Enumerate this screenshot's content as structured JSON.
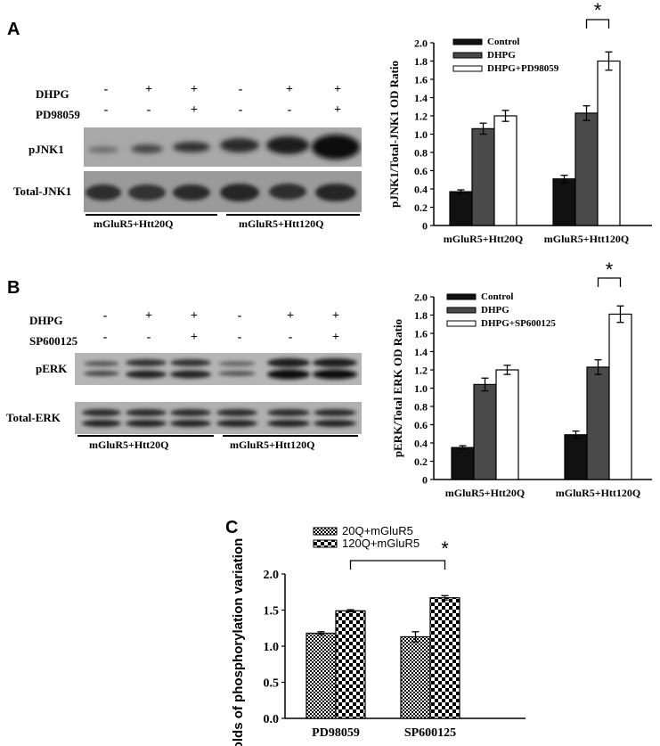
{
  "panels": {
    "a": {
      "letter": "A",
      "rows": [
        {
          "label": "DHPG",
          "signs": [
            "-",
            "+",
            "+",
            "-",
            "+",
            "+"
          ]
        },
        {
          "label": "PD98059",
          "signs": [
            "-",
            "-",
            "+",
            "-",
            "-",
            "+"
          ]
        }
      ],
      "blot_labels": [
        "pJNK1",
        "Total-JNK1"
      ],
      "group_labels": [
        "mGluR5+Htt20Q",
        "mGluR5+Htt120Q"
      ]
    },
    "b": {
      "letter": "B",
      "rows": [
        {
          "label": "DHPG",
          "signs": [
            "-",
            "+",
            "+",
            "-",
            "+",
            "+"
          ]
        },
        {
          "label": "SP600125",
          "signs": [
            "-",
            "-",
            "+",
            "-",
            "-",
            "+"
          ]
        }
      ],
      "blot_labels": [
        "pERK",
        "Total-ERK"
      ],
      "group_labels": [
        "mGluR5+Htt20Q",
        "mGluR5+Htt120Q"
      ]
    },
    "c": {
      "letter": "C"
    }
  },
  "chart_data": [
    {
      "type": "bar",
      "categories": [
        "mGluR5+Htt20Q",
        "mGluR5+Htt120Q"
      ],
      "series": [
        {
          "name": "Control",
          "values": [
            0.37,
            0.51
          ],
          "errors": [
            0.02,
            0.04
          ],
          "color": "#111111"
        },
        {
          "name": "DHPG",
          "values": [
            1.06,
            1.23
          ],
          "errors": [
            0.06,
            0.08
          ],
          "color": "#4a4a4a"
        },
        {
          "name": "DHPG+PD98059",
          "values": [
            1.2,
            1.8
          ],
          "errors": [
            0.06,
            0.1
          ],
          "color": "#ffffff"
        }
      ],
      "xlabel": "",
      "ylabel": "pJNK1/Total-JNK1 OD Ratio",
      "ylim": [
        0,
        2.0
      ],
      "yticks": [
        "0",
        "0.2",
        "0.4",
        "0.6",
        "0.8",
        "1.0",
        "1.2",
        "1.4",
        "1.6",
        "1.8",
        "2.0"
      ],
      "legend_position": "top-left",
      "grid": false,
      "annotation": {
        "text": "*",
        "bracket": "mGluR5+Htt120Q: DHPG vs DHPG+PD98059"
      }
    },
    {
      "type": "bar",
      "categories": [
        "mGluR5+Htt20Q",
        "mGluR5+Htt120Q"
      ],
      "series": [
        {
          "name": "Control",
          "values": [
            0.35,
            0.49
          ],
          "errors": [
            0.02,
            0.04
          ],
          "color": "#111111"
        },
        {
          "name": "DHPG",
          "values": [
            1.04,
            1.23
          ],
          "errors": [
            0.07,
            0.08
          ],
          "color": "#4a4a4a"
        },
        {
          "name": "DHPG+SP600125",
          "values": [
            1.2,
            1.81
          ],
          "errors": [
            0.05,
            0.09
          ],
          "color": "#ffffff"
        }
      ],
      "xlabel": "",
      "ylabel": "pERK/Total ERK OD Ratio",
      "ylim": [
        0,
        2.0
      ],
      "yticks": [
        "0",
        "0.2",
        "0.4",
        "0.6",
        "0.8",
        "1.0",
        "1.2",
        "1.4",
        "1.6",
        "1.8",
        "2.0"
      ],
      "legend_position": "top-left",
      "grid": false,
      "annotation": {
        "text": "*",
        "bracket": "mGluR5+Htt120Q: DHPG vs DHPG+SP600125"
      }
    },
    {
      "type": "bar",
      "categories": [
        "PD98059",
        "SP600125"
      ],
      "series": [
        {
          "name": "20Q+mGluR5",
          "values": [
            1.18,
            1.13
          ],
          "errors": [
            0.02,
            0.07
          ],
          "pattern": "dense-check"
        },
        {
          "name": "120Q+mGluR5",
          "values": [
            1.49,
            1.67
          ],
          "errors": [
            0.015,
            0.03
          ],
          "pattern": "large-check"
        }
      ],
      "xlabel": "",
      "ylabel": "folds of phosphorylation variation",
      "ylim": [
        0,
        2.0
      ],
      "yticks": [
        "0.0",
        "0.5",
        "1.0",
        "1.5",
        "2.0"
      ],
      "legend_position": "top-left",
      "grid": false,
      "annotation": {
        "text": "*",
        "bracket": "120Q+mGluR5: PD98059 vs SP600125"
      }
    }
  ]
}
